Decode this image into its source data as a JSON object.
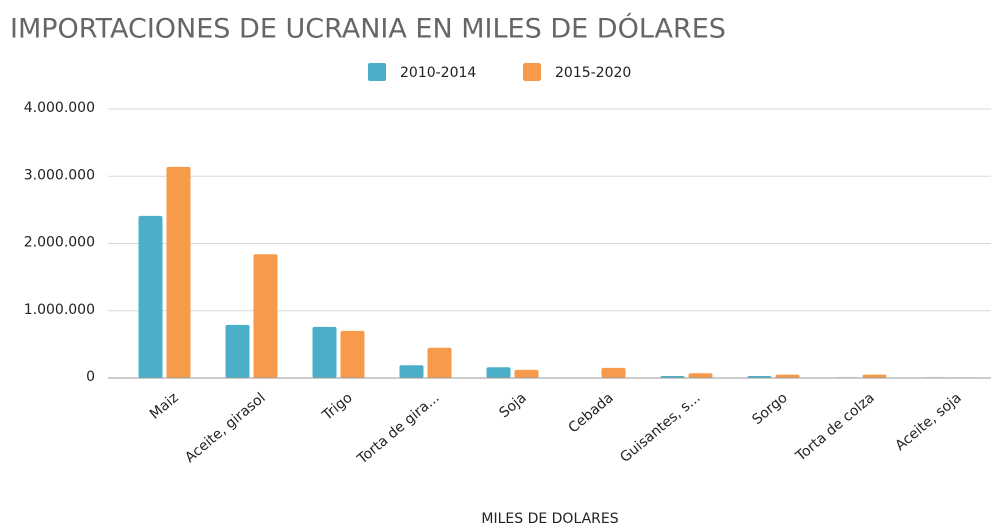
{
  "chart_data": {
    "type": "bar",
    "title": "IMPORTACIONES DE UCRANIA EN MILES DE DÓLARES",
    "x_label": "MILES DE DOLARES",
    "categories": [
      "Maiz",
      "Aceite, girasol",
      "Trigo",
      "Torta de gira...",
      "Soja",
      "Cebada",
      "Guisantes, s...",
      "Sorgo",
      "Torta de colza",
      "Aceite, soja"
    ],
    "series": [
      {
        "name": "2010-2014",
        "color": "#4bafc8",
        "values": [
          2410000,
          790000,
          760000,
          190000,
          160000,
          0,
          30000,
          30000,
          10000,
          10000
        ]
      },
      {
        "name": "2015-2020",
        "color": "#f79a4a",
        "values": [
          3140000,
          1840000,
          700000,
          450000,
          120000,
          150000,
          70000,
          50000,
          50000,
          10000
        ]
      }
    ],
    "ylim": [
      0,
      4000000
    ],
    "yticks": [
      0,
      {
        "value": 1000000,
        "label": "1.000.000"
      },
      {
        "value": 2000000,
        "label": "2.000.000"
      },
      {
        "value": 3000000,
        "label": "3.000.000"
      },
      {
        "value": 4000000,
        "label": "4.000.000"
      }
    ],
    "grid": true,
    "legend": "top"
  }
}
